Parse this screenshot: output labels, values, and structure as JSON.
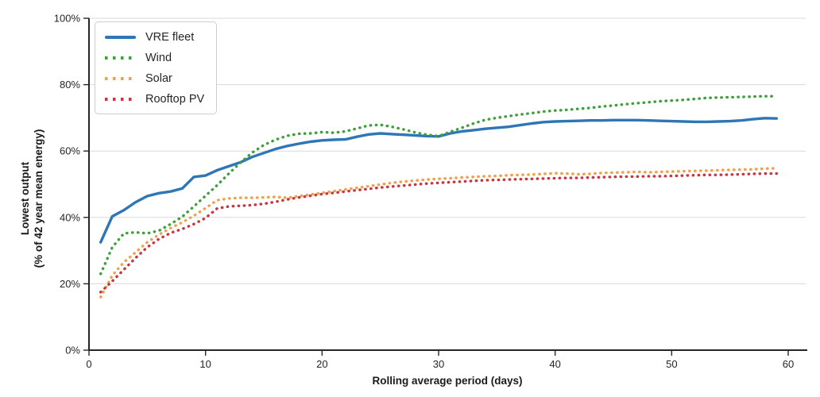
{
  "chart_data": {
    "type": "line",
    "title": "",
    "xlabel": "Rolling average period (days)",
    "ylabel_line1": "Lowest output",
    "ylabel_line2": "(% of 42 year mean energy)",
    "x_tick_labels": [
      "0",
      "10",
      "20",
      "30",
      "40",
      "50",
      "60"
    ],
    "x_ticks": [
      0,
      10,
      20,
      30,
      40,
      50,
      60
    ],
    "y_tick_labels": [
      "0%",
      "20%",
      "40%",
      "60%",
      "80%",
      "100%"
    ],
    "y_ticks": [
      0,
      20,
      40,
      60,
      80,
      100
    ],
    "xlim": [
      0,
      61.5
    ],
    "ylim": [
      0,
      100
    ],
    "grid": "horizontal",
    "legend_position": "top-left",
    "x": [
      1,
      2,
      3,
      4,
      5,
      6,
      7,
      8,
      9,
      10,
      11,
      12,
      13,
      14,
      15,
      16,
      17,
      18,
      19,
      20,
      21,
      22,
      23,
      24,
      25,
      26,
      27,
      28,
      29,
      30,
      31,
      32,
      33,
      34,
      35,
      36,
      37,
      38,
      39,
      40,
      41,
      42,
      43,
      44,
      45,
      46,
      47,
      48,
      49,
      50,
      51,
      52,
      53,
      54,
      55,
      56,
      57,
      58,
      59
    ],
    "series": [
      {
        "name": "VRE fleet",
        "color": "#2E76B6",
        "style": "solid",
        "values": [
          32.5,
          40.3,
          42.2,
          44.6,
          46.4,
          47.3,
          47.8,
          48.7,
          52.2,
          52.6,
          54.2,
          55.4,
          56.6,
          58.2,
          59.4,
          60.6,
          61.5,
          62.2,
          62.8,
          63.2,
          63.4,
          63.5,
          64.3,
          65.0,
          65.3,
          65.1,
          64.9,
          64.7,
          64.5,
          64.4,
          65.3,
          65.9,
          66.3,
          66.7,
          67.0,
          67.3,
          67.8,
          68.3,
          68.7,
          68.9,
          69.0,
          69.1,
          69.2,
          69.2,
          69.3,
          69.3,
          69.3,
          69.2,
          69.1,
          69.0,
          68.9,
          68.8,
          68.8,
          68.9,
          69.0,
          69.2,
          69.6,
          69.9,
          69.8
        ]
      },
      {
        "name": "Wind",
        "color": "#3DA03D",
        "style": "dotted",
        "values": [
          23.0,
          31.0,
          35.2,
          35.5,
          35.2,
          36.0,
          38.0,
          40.2,
          43.3,
          46.5,
          49.7,
          53.2,
          56.5,
          59.5,
          61.8,
          63.4,
          64.6,
          65.2,
          65.3,
          65.7,
          65.5,
          65.9,
          66.8,
          67.7,
          67.9,
          67.3,
          66.5,
          65.6,
          64.9,
          64.5,
          65.8,
          67.0,
          68.3,
          69.4,
          70.0,
          70.5,
          71.0,
          71.4,
          71.9,
          72.2,
          72.4,
          72.7,
          73.0,
          73.4,
          73.7,
          74.1,
          74.4,
          74.7,
          75.0,
          75.2,
          75.4,
          75.7,
          76.0,
          76.1,
          76.2,
          76.3,
          76.4,
          76.5,
          76.5
        ]
      },
      {
        "name": "Solar",
        "color": "#F0A04A",
        "style": "dotted",
        "values": [
          16.0,
          22.5,
          26.5,
          29.5,
          32.5,
          34.8,
          36.8,
          38.5,
          40.5,
          42.8,
          45.2,
          45.7,
          45.9,
          45.9,
          46.0,
          46.2,
          45.9,
          46.4,
          46.9,
          47.4,
          47.9,
          48.4,
          48.9,
          49.4,
          49.9,
          50.4,
          50.8,
          51.1,
          51.4,
          51.6,
          51.8,
          52.0,
          52.2,
          52.4,
          52.5,
          52.7,
          52.8,
          52.9,
          53.1,
          53.3,
          53.2,
          53.0,
          53.1,
          53.4,
          53.5,
          53.6,
          53.7,
          53.6,
          53.7,
          53.8,
          53.9,
          54.0,
          54.1,
          54.2,
          54.3,
          54.4,
          54.5,
          54.7,
          54.8
        ]
      },
      {
        "name": "Rooftop PV",
        "color": "#C53743",
        "style": "dotted",
        "values": [
          17.5,
          20.8,
          24.3,
          27.8,
          31.0,
          33.5,
          35.3,
          36.5,
          38.0,
          39.8,
          42.7,
          43.3,
          43.5,
          43.7,
          44.1,
          44.7,
          45.4,
          46.0,
          46.5,
          47.0,
          47.4,
          47.8,
          48.2,
          48.6,
          49.0,
          49.3,
          49.6,
          49.9,
          50.2,
          50.4,
          50.6,
          50.8,
          51.0,
          51.2,
          51.3,
          51.4,
          51.5,
          51.6,
          51.7,
          51.8,
          51.9,
          51.9,
          52.0,
          52.1,
          52.2,
          52.3,
          52.3,
          52.4,
          52.4,
          52.5,
          52.6,
          52.7,
          52.8,
          52.8,
          52.9,
          53.0,
          53.1,
          53.2,
          53.2
        ]
      }
    ]
  }
}
